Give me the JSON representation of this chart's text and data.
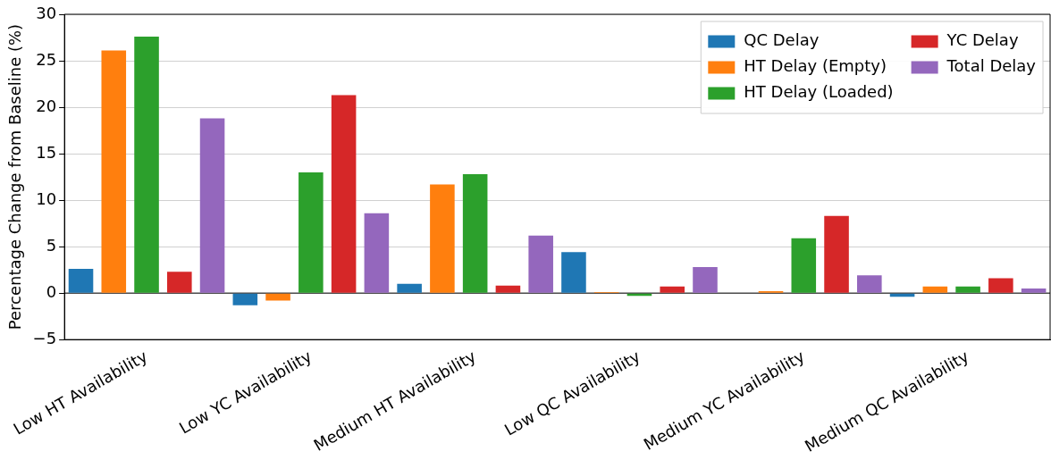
{
  "chart_data": {
    "type": "bar",
    "ylabel": "Percentage Change from Baseline (%)",
    "categories": [
      "Low HT Availability",
      "Low YC Availability",
      "Medium HT Availability",
      "Low QC Availability",
      "Medium YC Availability",
      "Medium QC Availability"
    ],
    "series": [
      {
        "name": "QC Delay",
        "color": "#1f77b4",
        "values": [
          2.6,
          -1.3,
          1.0,
          4.4,
          0,
          -0.4
        ]
      },
      {
        "name": "HT Delay (Empty)",
        "color": "#ff7f0e",
        "values": [
          26.1,
          -0.8,
          11.7,
          0.1,
          0.2,
          0.7
        ]
      },
      {
        "name": "HT Delay (Loaded)",
        "color": "#2ca02c",
        "values": [
          27.6,
          13.0,
          12.8,
          -0.3,
          5.9,
          0.7
        ]
      },
      {
        "name": "YC Delay",
        "color": "#d62728",
        "values": [
          2.3,
          21.3,
          0.8,
          0.7,
          8.3,
          1.6
        ]
      },
      {
        "name": "Total Delay",
        "color": "#9467bd",
        "values": [
          18.8,
          8.6,
          6.2,
          2.8,
          1.9,
          0.5
        ]
      }
    ],
    "ylim": [
      -5,
      30
    ],
    "yticks": [
      {
        "value": -5,
        "label": "−5"
      },
      0,
      5,
      10,
      15,
      20,
      25,
      30
    ],
    "grid": "y",
    "legend": "top right",
    "ref_lines": [
      {
        "axis": "y",
        "value": 0,
        "color": "#000000"
      }
    ]
  }
}
